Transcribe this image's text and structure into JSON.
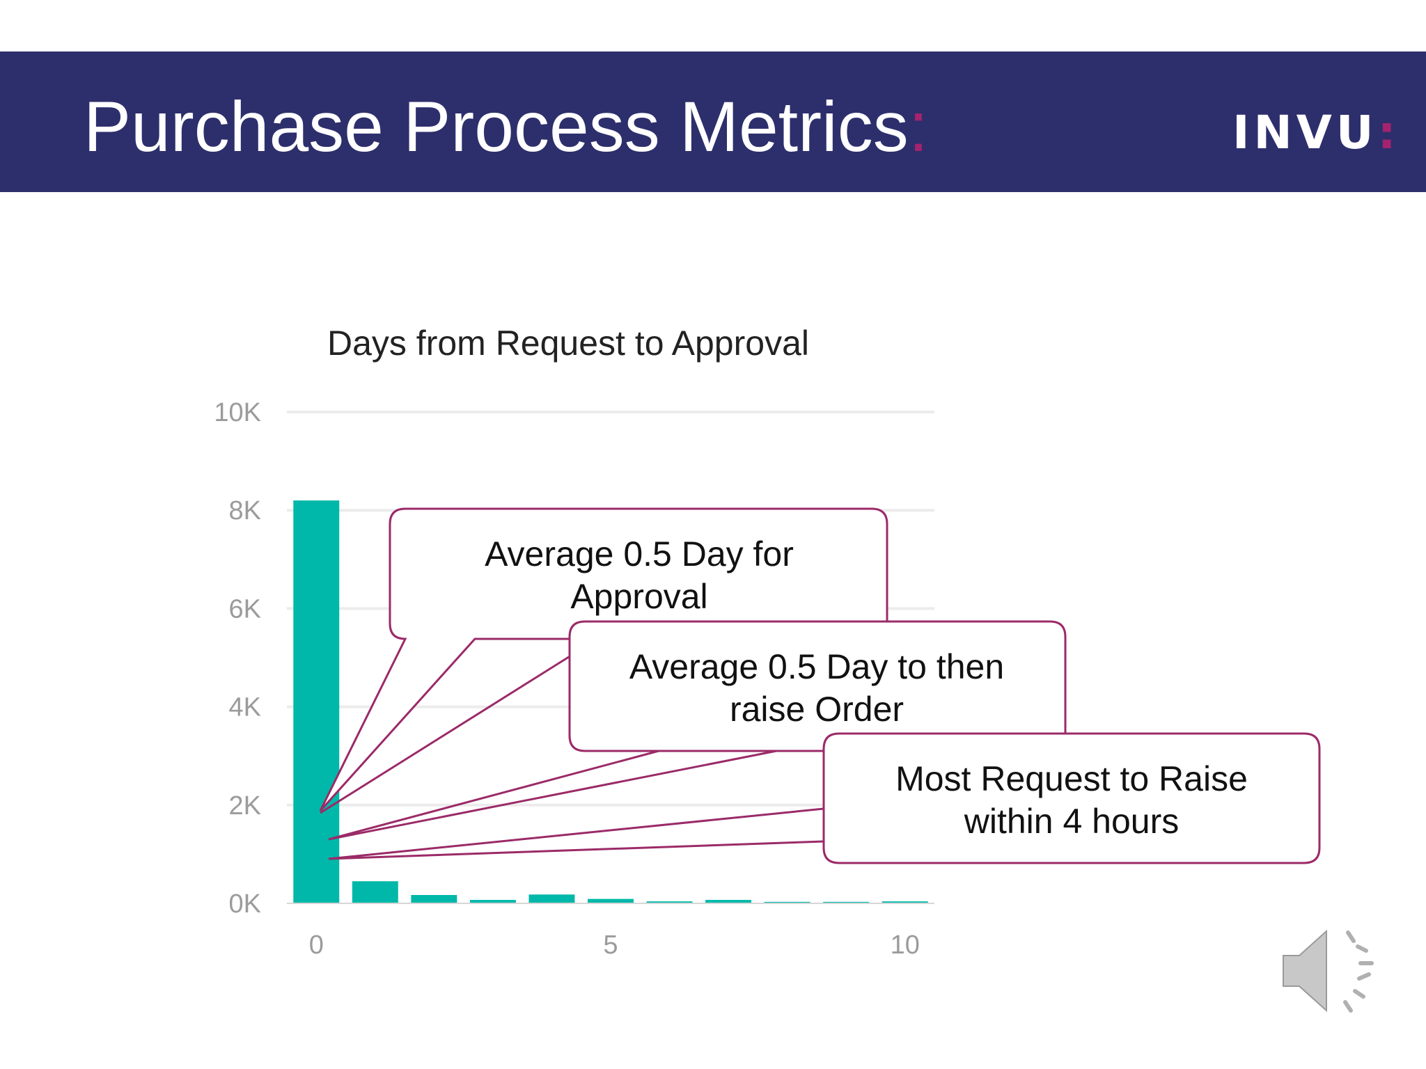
{
  "slide": {
    "title": "Purchase Process Metrics",
    "title_colon": ":",
    "logo_text": "INVU",
    "logo_colon": ":",
    "colors": {
      "header_bg": "#2d2f6c",
      "accent": "#a4236e",
      "bar": "#00b8a9",
      "callout_border": "#9b2a68"
    },
    "speaker_icon": "speaker-icon"
  },
  "chart_data": {
    "type": "bar",
    "title": "Days from Request to Approval",
    "xlabel": "",
    "ylabel": "",
    "x": [
      0,
      1,
      2,
      3,
      4,
      5,
      6,
      7,
      8,
      9,
      10
    ],
    "values": [
      8200,
      450,
      170,
      70,
      180,
      90,
      40,
      70,
      30,
      30,
      40
    ],
    "ylim": [
      0,
      10000
    ],
    "yticks": [
      0,
      2000,
      4000,
      6000,
      8000,
      10000
    ],
    "ytick_labels": [
      "0K",
      "2K",
      "4K",
      "6K",
      "8K",
      "10K"
    ],
    "xticks": [
      0,
      5,
      10
    ],
    "xtick_labels": [
      "0",
      "5",
      "10"
    ],
    "grid": true,
    "legend": "none",
    "annotations": [
      "Average 0.5 Day for Approval",
      "Average 0.5 Day to then raise Order",
      "Most Request to Raise within 4 hours"
    ]
  },
  "callouts": [
    {
      "line1": "Average 0.5 Day for",
      "line2": "Approval"
    },
    {
      "line1": "Average 0.5 Day to then",
      "line2": "raise Order"
    },
    {
      "line1": "Most Request to Raise",
      "line2": "within 4 hours"
    }
  ]
}
